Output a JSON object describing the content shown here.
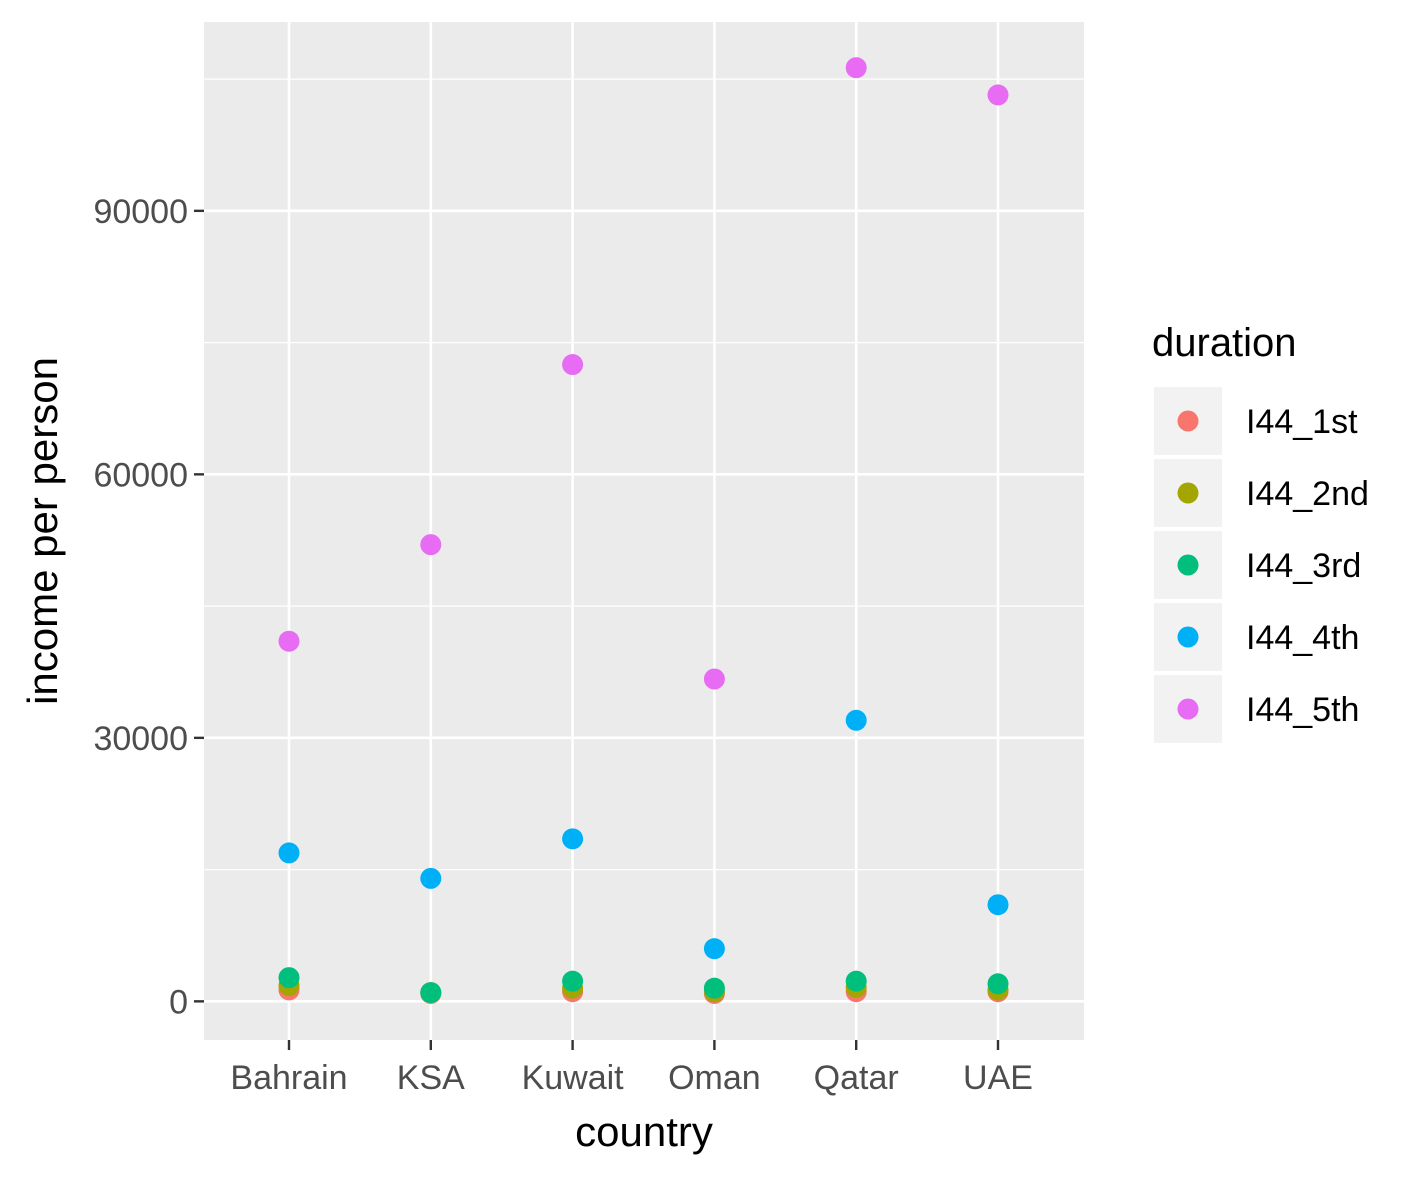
{
  "chart_data": {
    "type": "scatter",
    "xlabel": "country",
    "ylabel": "income per person",
    "categories": [
      "Bahrain",
      "KSA",
      "Kuwait",
      "Oman",
      "Qatar",
      "UAE"
    ],
    "y_ticks": [
      0,
      30000,
      60000,
      90000
    ],
    "y_tick_labels": [
      "0",
      "30000",
      "60000",
      "90000"
    ],
    "ylim": [
      -4400,
      111500
    ],
    "grid": true,
    "legend": {
      "title": "duration",
      "position": "right"
    },
    "series": [
      {
        "name": "I44_1st",
        "color": "#F8766D",
        "values": [
          1300,
          900,
          1100,
          900,
          1100,
          1100
        ]
      },
      {
        "name": "I44_2nd",
        "color": "#A3A500",
        "values": [
          1800,
          1000,
          1500,
          1100,
          1600,
          1300
        ]
      },
      {
        "name": "I44_3rd",
        "color": "#00BF7D",
        "values": [
          2700,
          1000,
          2300,
          1500,
          2300,
          2000
        ]
      },
      {
        "name": "I44_4th",
        "color": "#00B0F6",
        "values": [
          16900,
          14000,
          18500,
          6000,
          32000,
          11000
        ]
      },
      {
        "name": "I44_5th",
        "color": "#E76BF3",
        "values": [
          41000,
          52000,
          72500,
          36700,
          106300,
          103200
        ]
      }
    ]
  }
}
